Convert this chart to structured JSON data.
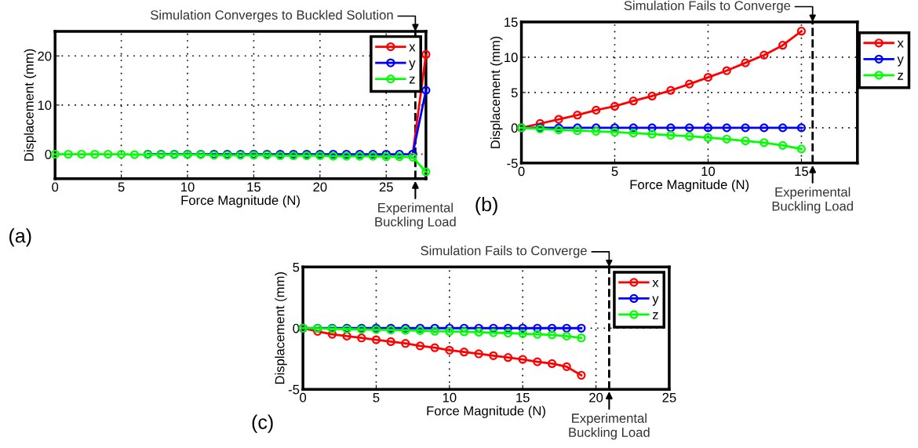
{
  "chart_data": [
    {
      "type": "line",
      "xlabel": "Force Magnitude (N)",
      "ylabel": "Displacement (mm)",
      "x": [
        0,
        1,
        2,
        3,
        4,
        5,
        6,
        7,
        8,
        9,
        10,
        11,
        12,
        13,
        14,
        15,
        16,
        17,
        18,
        19,
        20,
        21,
        22,
        23,
        24,
        25,
        26,
        27,
        28
      ],
      "series": [
        {
          "name": "x",
          "color": "#ff0000",
          "values": [
            null,
            null,
            null,
            null,
            null,
            null,
            null,
            null,
            null,
            null,
            null,
            null,
            null,
            null,
            null,
            null,
            null,
            null,
            null,
            null,
            null,
            null,
            null,
            null,
            null,
            null,
            null,
            0,
            20.3
          ]
        },
        {
          "name": "y",
          "color": "#0000ff",
          "values": [
            null,
            null,
            null,
            null,
            null,
            null,
            null,
            0,
            0,
            0,
            0,
            0,
            0,
            0,
            0,
            0,
            0,
            0,
            0,
            0,
            0,
            0,
            0,
            0,
            0,
            0,
            0,
            0,
            13.0
          ]
        },
        {
          "name": "z",
          "color": "#00ff00",
          "values": [
            0,
            0,
            0,
            0,
            0,
            0,
            -0.1,
            -0.1,
            -0.1,
            -0.1,
            -0.1,
            -0.1,
            -0.2,
            -0.2,
            -0.2,
            -0.2,
            -0.2,
            -0.3,
            -0.3,
            -0.3,
            -0.3,
            -0.4,
            -0.4,
            -0.4,
            -0.4,
            -0.5,
            -0.5,
            -0.6,
            -3.6
          ]
        }
      ],
      "xlim": [
        0,
        28
      ],
      "ylim": [
        -5,
        25
      ],
      "xticks": [
        0,
        5,
        10,
        15,
        20,
        25
      ],
      "yticks": [
        0,
        10,
        20
      ],
      "ref_lines": [
        {
          "axis": "x",
          "value": 27.2,
          "label": "Experimental\nBuckling Load",
          "color": "#000000",
          "line_style": "dashed"
        }
      ],
      "annotations": [
        "Simulation Converges to Buckled Solution",
        "(a)"
      ],
      "grid": true,
      "legend": "top right",
      "marker": "circle",
      "line_style": "solid"
    },
    {
      "type": "line",
      "xlabel": "Force Magnitude (N)",
      "ylabel": "Displacement (mm)",
      "x": [
        0,
        1,
        2,
        3,
        4,
        5,
        6,
        7,
        8,
        9,
        10,
        11,
        12,
        13,
        14,
        15
      ],
      "series": [
        {
          "name": "x",
          "color": "#ff0000",
          "values": [
            0,
            0.6,
            1.2,
            1.8,
            2.5,
            3.05,
            3.8,
            4.5,
            5.3,
            6.2,
            7.15,
            8.1,
            9.2,
            10.3,
            11.7,
            13.7
          ]
        },
        {
          "name": "y",
          "color": "#0000ff",
          "values": [
            0,
            0,
            0,
            0,
            0,
            0,
            0,
            0,
            0,
            0,
            0,
            0,
            0,
            0,
            0,
            0
          ]
        },
        {
          "name": "z",
          "color": "#00ff00",
          "values": [
            0,
            -0.15,
            -0.3,
            -0.4,
            -0.5,
            -0.6,
            -0.75,
            -0.9,
            -1.05,
            -1.2,
            -1.4,
            -1.6,
            -1.85,
            -2.1,
            -2.5,
            -3.0
          ]
        }
      ],
      "xlim": [
        0,
        18
      ],
      "ylim": [
        -5,
        15
      ],
      "xticks": [
        0,
        5,
        10,
        15
      ],
      "yticks": [
        -5,
        0,
        5,
        10,
        15
      ],
      "ref_lines": [
        {
          "axis": "x",
          "value": 15.6,
          "label": "Experimental\nBuckling Load",
          "color": "#000000",
          "line_style": "dashed"
        }
      ],
      "annotations": [
        "Simulation Fails to Converge",
        "(b)"
      ],
      "grid": true,
      "legend": "right",
      "marker": "circle",
      "line_style": "solid"
    },
    {
      "type": "line",
      "xlabel": "Force Magnitude (N)",
      "ylabel": "Displacement (mm)",
      "x": [
        0,
        1,
        2,
        3,
        4,
        5,
        6,
        7,
        8,
        9,
        10,
        11,
        12,
        13,
        14,
        15,
        16,
        17,
        18,
        19
      ],
      "series": [
        {
          "name": "x",
          "color": "#ff0000",
          "values": [
            0,
            -0.26,
            -0.5,
            -0.65,
            -0.8,
            -0.95,
            -1.1,
            -1.25,
            -1.45,
            -1.6,
            -1.8,
            -1.95,
            -2.1,
            -2.25,
            -2.4,
            -2.55,
            -2.75,
            -2.9,
            -3.15,
            -3.85
          ]
        },
        {
          "name": "y",
          "color": "#0000ff",
          "values": [
            0,
            0,
            0,
            0,
            0,
            0,
            0,
            0,
            0,
            0,
            0,
            0,
            0,
            0,
            0,
            0,
            0,
            0,
            0,
            0
          ]
        },
        {
          "name": "z",
          "color": "#00ff00",
          "values": [
            0,
            -0.02,
            -0.05,
            -0.08,
            -0.1,
            -0.12,
            -0.15,
            -0.18,
            -0.2,
            -0.25,
            -0.27,
            -0.3,
            -0.33,
            -0.37,
            -0.4,
            -0.45,
            -0.5,
            -0.55,
            -0.65,
            -0.8
          ]
        }
      ],
      "xlim": [
        0,
        25
      ],
      "ylim": [
        -5,
        5
      ],
      "xticks": [
        0,
        5,
        10,
        15,
        20,
        25
      ],
      "yticks": [
        -5,
        0,
        5
      ],
      "ref_lines": [
        {
          "axis": "x",
          "value": 20.9,
          "label": "Experimental\nBuckling Load",
          "color": "#000000",
          "line_style": "dashed"
        }
      ],
      "annotations": [
        "Simulation Fails to Converge",
        "(c)"
      ],
      "grid": true,
      "legend": "top right",
      "marker": "circle",
      "line_style": "solid"
    }
  ]
}
